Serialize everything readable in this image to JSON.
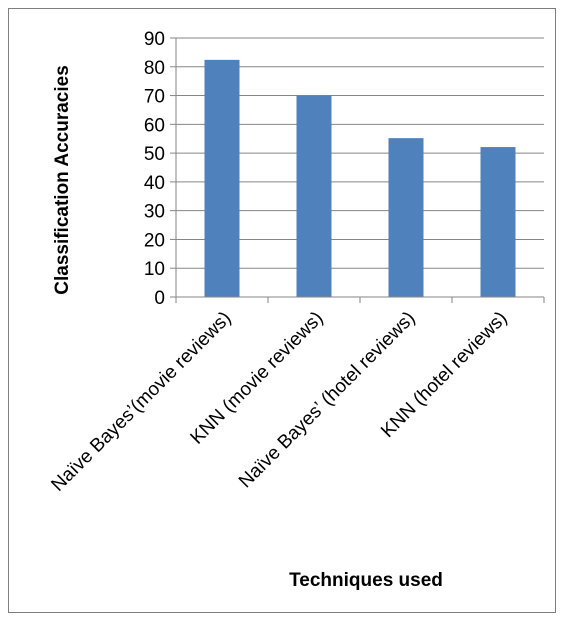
{
  "chart_data": {
    "type": "bar",
    "categories": [
      "Naïve Bayes’(movie reviews)",
      "KNN (movie reviews)",
      "Naïve Bayes’ (hotel reviews)",
      "KNN (hotel reviews)"
    ],
    "values": [
      82.4,
      70,
      55.2,
      52.1
    ],
    "xlabel": "Techniques used",
    "ylabel": "Classification Accuracies",
    "ylim": [
      0,
      90
    ],
    "yticks": [
      0,
      10,
      20,
      30,
      40,
      50,
      60,
      70,
      80,
      90
    ],
    "grid": true,
    "legend": "none",
    "bar_color": "#4f81bd"
  }
}
